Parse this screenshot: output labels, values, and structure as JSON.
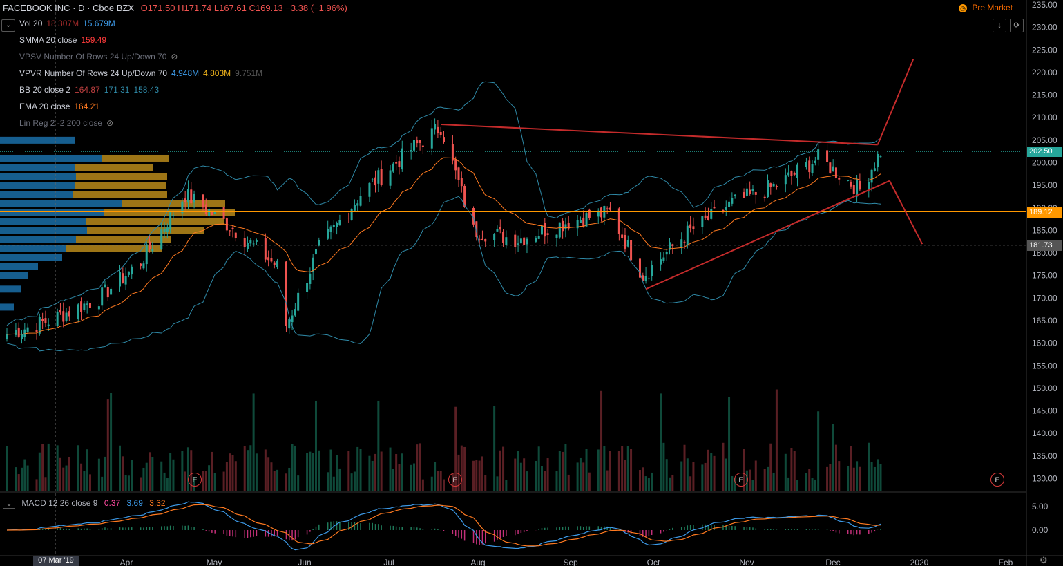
{
  "header": {
    "symbol": "FACEBOOK INC · D · Cboe BZX",
    "ohlc": "O171.50 H171.74 L167.61 C169.13 −3.38 (−1.96%)",
    "premarket_icon": "clock-icon",
    "premarket_label": "Pre Market"
  },
  "indicators": [
    {
      "name": "Vol 20",
      "values": [
        "18.307M",
        "15.679M"
      ],
      "colors": [
        "#a22a2a",
        "#3d9be9"
      ]
    },
    {
      "name": "SMMA 20 close",
      "values": [
        "159.49"
      ],
      "colors": [
        "#ff3b3b"
      ]
    },
    {
      "name": "VPSV Number Of Rows 24 Up/Down 70",
      "values": [],
      "colors": [],
      "hidden": true
    },
    {
      "name": "VPVR Number Of Rows 24 Up/Down 70",
      "values": [
        "4.948M",
        "4.803M",
        "9.751M"
      ],
      "colors": [
        "#3d9be9",
        "#f2b51b",
        "#555"
      ]
    },
    {
      "name": "BB 20 close 2",
      "values": [
        "164.87",
        "171.31",
        "158.43"
      ],
      "colors": [
        "#c04040",
        "#2f8aa8",
        "#2f8aa8"
      ]
    },
    {
      "name": "EMA 20 close",
      "values": [
        "164.21"
      ],
      "colors": [
        "#ff7a20"
      ]
    },
    {
      "name": "Lin Reg 2 -2 200 close",
      "values": [],
      "colors": [],
      "hidden": true
    }
  ],
  "macd": {
    "name": "MACD 12 26 close 9",
    "values": [
      "0.37",
      "3.69",
      "3.32"
    ],
    "colors": [
      "#ff4aa0",
      "#3d9be9",
      "#ff7a20"
    ]
  },
  "price_axis": {
    "ticks": [
      "235.00",
      "230.00",
      "225.00",
      "220.00",
      "215.00",
      "210.00",
      "205.00",
      "200.00",
      "195.00",
      "190.00",
      "185.00",
      "180.00",
      "175.00",
      "170.00",
      "165.00",
      "160.00",
      "155.00",
      "150.00",
      "145.00",
      "140.00",
      "135.00",
      "130.00"
    ],
    "tick_values": [
      235,
      230,
      225,
      220,
      215,
      210,
      205,
      200,
      195,
      190,
      185,
      180,
      175,
      170,
      165,
      160,
      155,
      150,
      145,
      140,
      135,
      130
    ],
    "labels": [
      {
        "text": "202.50",
        "value": 202.5,
        "bg": "#26a69a"
      },
      {
        "text": "189.12",
        "value": 189.12,
        "bg": "#ff9800"
      },
      {
        "text": "181.73",
        "value": 181.73,
        "bg": "#555"
      }
    ]
  },
  "macd_axis": {
    "ticks": [
      "5.00",
      "0.00"
    ],
    "tick_values": [
      5,
      0
    ]
  },
  "time_axis": {
    "crosshair_label": "07 Mar '19",
    "ticks": [
      "Apr",
      "May",
      "Jun",
      "Jul",
      "Aug",
      "Sep",
      "Oct",
      "Nov",
      "Dec",
      "2020",
      "Feb"
    ]
  },
  "earnings_marker": "E",
  "chart_data": {
    "type": "candlestick",
    "title": "FACEBOOK INC · D · Cboe BZX",
    "xlabel": "",
    "ylabel": "",
    "ylim": [
      127,
      236
    ],
    "approx_close_series": [
      {
        "date": "2019-03-01",
        "close": 162
      },
      {
        "date": "2019-03-15",
        "close": 165
      },
      {
        "date": "2019-04-01",
        "close": 170
      },
      {
        "date": "2019-04-15",
        "close": 178
      },
      {
        "date": "2019-04-30",
        "close": 193
      },
      {
        "date": "2019-05-15",
        "close": 186
      },
      {
        "date": "2019-05-31",
        "close": 177
      },
      {
        "date": "2019-06-03",
        "close": 164
      },
      {
        "date": "2019-06-14",
        "close": 181
      },
      {
        "date": "2019-06-28",
        "close": 193
      },
      {
        "date": "2019-07-15",
        "close": 203
      },
      {
        "date": "2019-07-25",
        "close": 208
      },
      {
        "date": "2019-08-05",
        "close": 185
      },
      {
        "date": "2019-08-20",
        "close": 183
      },
      {
        "date": "2019-09-06",
        "close": 187
      },
      {
        "date": "2019-09-20",
        "close": 189
      },
      {
        "date": "2019-10-01",
        "close": 175
      },
      {
        "date": "2019-10-15",
        "close": 184
      },
      {
        "date": "2019-10-31",
        "close": 191
      },
      {
        "date": "2019-11-15",
        "close": 195
      },
      {
        "date": "2019-11-29",
        "close": 201
      },
      {
        "date": "2019-12-13",
        "close": 194
      },
      {
        "date": "2019-12-20",
        "close": 202.5
      }
    ],
    "trendlines": [
      {
        "name": "resistance",
        "color": "#c42b2b",
        "from": {
          "date": "2019-07-25",
          "value": 208.5
        },
        "to": {
          "date": "2019-12-19",
          "value": 204
        }
      },
      {
        "name": "support",
        "color": "#c42b2b",
        "from": {
          "date": "2019-10-02",
          "value": 172
        },
        "to": {
          "date": "2019-12-23",
          "value": 196
        }
      },
      {
        "name": "projection-up",
        "color": "#c42b2b",
        "from": {
          "date": "2019-12-19",
          "value": 204
        },
        "to": {
          "date": "2019-12-31",
          "value": 223
        }
      },
      {
        "name": "projection-down",
        "color": "#c42b2b",
        "from": {
          "date": "2019-12-23",
          "value": 196
        },
        "to": {
          "date": "2020-01-03",
          "value": 182
        }
      }
    ],
    "levels": [
      189.12,
      181.73
    ],
    "grid": false
  }
}
